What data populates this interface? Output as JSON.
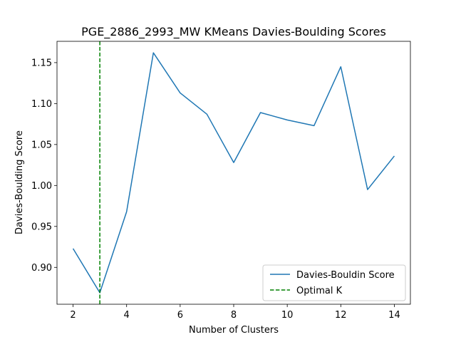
{
  "chart_data": {
    "type": "line",
    "title": "PGE_2886_2993_MW KMeans Davies-Boulding Scores",
    "xlabel": "Number of Clusters",
    "ylabel": "Davies-Boulding Score",
    "x": [
      2,
      3,
      4,
      5,
      6,
      7,
      8,
      9,
      10,
      11,
      12,
      13,
      14
    ],
    "series": [
      {
        "name": "Davies-Bouldin Score",
        "color": "#1f77b4",
        "values": [
          0.923,
          0.869,
          0.968,
          1.162,
          1.113,
          1.087,
          1.028,
          1.089,
          1.08,
          1.073,
          1.145,
          0.995,
          1.036
        ]
      }
    ],
    "optimal_k": {
      "name": "Optimal K",
      "x": 3,
      "color": "#008000",
      "style": "dashed"
    },
    "xlim": [
      1.4,
      14.6
    ],
    "ylim": [
      0.855,
      1.176
    ],
    "xticks": [
      2,
      4,
      6,
      8,
      10,
      12,
      14
    ],
    "yticks": [
      "0.90",
      "0.95",
      "1.00",
      "1.05",
      "1.10",
      "1.15"
    ],
    "grid": false,
    "legend_position": "lower-right"
  }
}
